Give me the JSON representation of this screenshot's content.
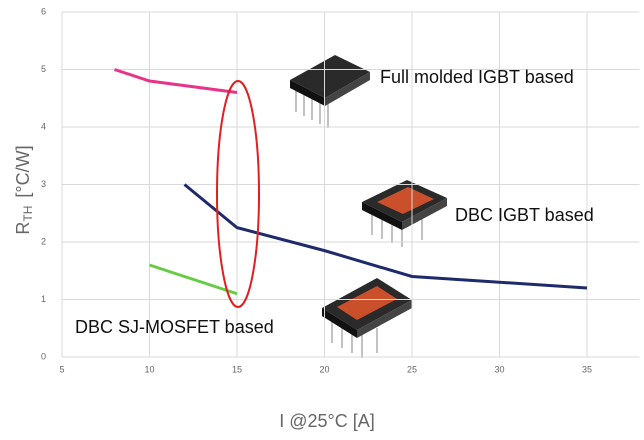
{
  "chart_data": {
    "type": "line",
    "x_label": "I @25°C  [A]",
    "y_label": {
      "main": "R",
      "sub": "TH",
      "unit": "[°C/W]"
    },
    "xlim": [
      5,
      38
    ],
    "xticks": [
      5,
      10,
      15,
      20,
      25,
      30,
      35
    ],
    "ylim": [
      0,
      6
    ],
    "yticks": [
      0,
      1,
      2,
      3,
      4,
      5,
      6
    ],
    "grid": true,
    "series": [
      {
        "name": "Full molded IGBT based",
        "color": "#e8338a",
        "x": [
          8,
          10,
          15
        ],
        "values": [
          5,
          4.8,
          4.6
        ]
      },
      {
        "name": "DBC IGBT based",
        "color": "#1f2a6b",
        "x": [
          12,
          15,
          20,
          25,
          35
        ],
        "values": [
          3,
          2.25,
          1.85,
          1.4,
          1.2
        ]
      },
      {
        "name": "DBC SJ-MOSFET based",
        "color": "#66cc44",
        "x": [
          10,
          15
        ],
        "values": [
          1.6,
          1.1
        ]
      }
    ]
  }
}
